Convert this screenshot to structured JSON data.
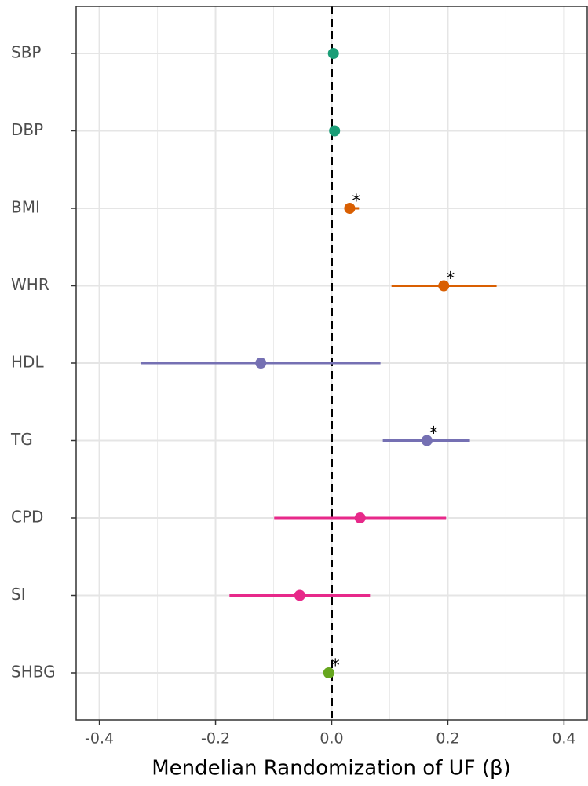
{
  "chart_data": {
    "type": "forest",
    "x_label": "Mendelian Randomization of UF (β)",
    "categories": [
      "SBP",
      "DBP",
      "BMI",
      "WHR",
      "HDL",
      "TG",
      "CPD",
      "SI",
      "SHBG"
    ],
    "values": [
      0.003,
      0.005,
      0.031,
      0.193,
      -0.122,
      0.164,
      0.049,
      -0.055,
      -0.005
    ],
    "lower": [
      0.0,
      0.002,
      0.022,
      0.103,
      -0.328,
      0.088,
      -0.099,
      -0.176,
      -0.012
    ],
    "upper": [
      0.006,
      0.008,
      0.047,
      0.284,
      0.084,
      0.238,
      0.197,
      0.066,
      0.001
    ],
    "colors": [
      "#1b9e77",
      "#1b9e77",
      "#d95f02",
      "#d95f02",
      "#7570b3",
      "#7570b3",
      "#e7298a",
      "#e7298a",
      "#66a61e"
    ],
    "markers": [
      null,
      null,
      "*",
      "*",
      null,
      "*",
      null,
      null,
      "*"
    ],
    "ref_line": 0,
    "xlim": [
      -0.44,
      0.44
    ],
    "xticks": [
      -0.4,
      -0.2,
      {
        "value": 0,
        "label": "0.0"
      },
      0.2,
      0.4
    ],
    "minor_xticks": [
      -0.3,
      -0.1,
      0.1,
      0.3
    ],
    "grid": true
  }
}
